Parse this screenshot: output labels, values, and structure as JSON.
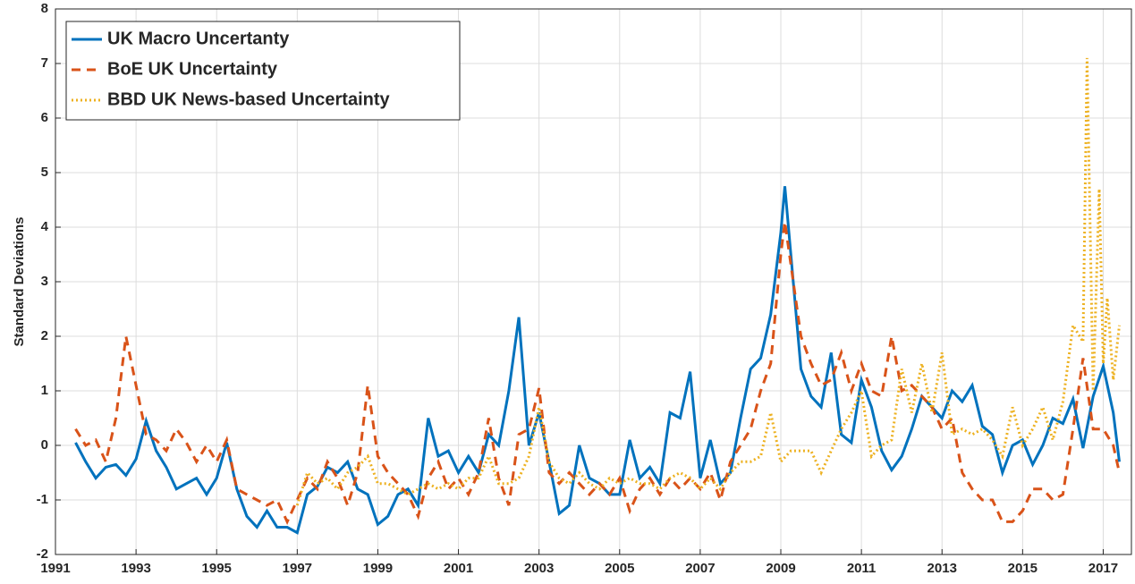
{
  "chart_data": {
    "type": "line",
    "ylabel": "Standard Deviations",
    "xlim": [
      1991,
      2017.7
    ],
    "xticks": [
      1991,
      1993,
      1995,
      1997,
      1999,
      2001,
      2003,
      2005,
      2007,
      2009,
      2011,
      2013,
      2015,
      2017
    ],
    "ylim": [
      -2,
      8
    ],
    "yticks": [
      -2,
      -1,
      0,
      1,
      2,
      3,
      4,
      5,
      6,
      7,
      8
    ],
    "grid": true,
    "legend": "upper-left",
    "series": [
      {
        "name": "UK Macro Uncertanty",
        "color": "#0072bd",
        "linestyle": "solid",
        "x": [
          1991.5,
          1991.75,
          1992,
          1992.25,
          1992.5,
          1992.75,
          1993,
          1993.25,
          1993.5,
          1993.75,
          1994,
          1994.25,
          1994.5,
          1994.75,
          1995,
          1995.25,
          1995.5,
          1995.75,
          1996,
          1996.25,
          1996.5,
          1996.75,
          1997,
          1997.25,
          1997.5,
          1997.75,
          1998,
          1998.25,
          1998.5,
          1998.75,
          1999,
          1999.25,
          1999.5,
          1999.75,
          2000,
          2000.25,
          2000.5,
          2000.75,
          2001,
          2001.25,
          2001.5,
          2001.75,
          2002,
          2002.25,
          2002.5,
          2002.75,
          2003,
          2003.25,
          2003.5,
          2003.75,
          2004,
          2004.25,
          2004.5,
          2004.75,
          2005,
          2005.25,
          2005.5,
          2005.75,
          2006,
          2006.25,
          2006.5,
          2006.75,
          2007,
          2007.25,
          2007.5,
          2007.75,
          2008,
          2008.25,
          2008.5,
          2008.75,
          2009,
          2009.1,
          2009.5,
          2009.75,
          2010,
          2010.25,
          2010.5,
          2010.75,
          2011,
          2011.25,
          2011.5,
          2011.75,
          2012,
          2012.25,
          2012.5,
          2012.75,
          2013,
          2013.25,
          2013.5,
          2013.75,
          2014,
          2014.25,
          2014.5,
          2014.75,
          2015,
          2015.25,
          2015.5,
          2015.75,
          2016,
          2016.25,
          2016.5,
          2016.75,
          2017,
          2017.25,
          2017.4
        ],
        "values": [
          0.05,
          -0.3,
          -0.6,
          -0.4,
          -0.35,
          -0.55,
          -0.25,
          0.45,
          -0.1,
          -0.4,
          -0.8,
          -0.7,
          -0.6,
          -0.9,
          -0.6,
          0.05,
          -0.8,
          -1.3,
          -1.5,
          -1.2,
          -1.5,
          -1.5,
          -1.6,
          -0.9,
          -0.75,
          -0.4,
          -0.5,
          -0.3,
          -0.8,
          -0.9,
          -1.45,
          -1.3,
          -0.9,
          -0.8,
          -1.1,
          0.5,
          -0.2,
          -0.1,
          -0.5,
          -0.2,
          -0.5,
          0.2,
          0,
          1,
          2.35,
          0,
          0.6,
          -0.3,
          -1.25,
          -1.1,
          0,
          -0.6,
          -0.7,
          -0.9,
          -0.9,
          0.1,
          -0.6,
          -0.4,
          -0.7,
          0.6,
          0.5,
          1.35,
          -0.6,
          0.1,
          -0.7,
          -0.5,
          0.5,
          1.4,
          1.6,
          2.4,
          3.9,
          4.75,
          1.4,
          0.9,
          0.7,
          1.7,
          0.2,
          0.05,
          1.2,
          0.7,
          -0.1,
          -0.45,
          -0.2,
          0.3,
          0.9,
          0.7,
          0.5,
          1,
          0.8,
          1.1,
          0.35,
          0.2,
          -0.5,
          0,
          0.1,
          -0.35,
          0,
          0.5,
          0.4,
          0.85,
          -0.05,
          0.9,
          1.45,
          0.6,
          -0.3
        ]
      },
      {
        "name": "BoE UK Uncertainty",
        "color": "#d95319",
        "linestyle": "dashed",
        "x": [
          1991.5,
          1991.75,
          1992,
          1992.25,
          1992.5,
          1992.75,
          1993,
          1993.25,
          1993.5,
          1993.75,
          1994,
          1994.25,
          1994.5,
          1994.75,
          1995,
          1995.25,
          1995.5,
          1995.75,
          1996,
          1996.25,
          1996.5,
          1996.75,
          1997,
          1997.25,
          1997.5,
          1997.75,
          1998,
          1998.25,
          1998.5,
          1998.75,
          1999,
          1999.25,
          1999.5,
          1999.75,
          2000,
          2000.25,
          2000.5,
          2000.75,
          2001,
          2001.25,
          2001.5,
          2001.75,
          2002,
          2002.25,
          2002.5,
          2002.75,
          2003,
          2003.25,
          2003.5,
          2003.75,
          2004,
          2004.25,
          2004.5,
          2004.75,
          2005,
          2005.25,
          2005.5,
          2005.75,
          2006,
          2006.25,
          2006.5,
          2006.75,
          2007,
          2007.25,
          2007.5,
          2007.75,
          2008,
          2008.25,
          2008.5,
          2008.75,
          2009,
          2009.1,
          2009.5,
          2009.75,
          2010,
          2010.25,
          2010.5,
          2010.75,
          2011,
          2011.25,
          2011.5,
          2011.75,
          2012,
          2012.25,
          2012.5,
          2012.75,
          2013,
          2013.25,
          2013.5,
          2013.75,
          2014,
          2014.25,
          2014.5,
          2014.75,
          2015,
          2015.25,
          2015.5,
          2015.75,
          2016,
          2016.25,
          2016.5,
          2016.75,
          2017,
          2017.25,
          2017.4
        ],
        "values": [
          0.3,
          0,
          0.1,
          -0.3,
          0.5,
          2,
          1.1,
          0.2,
          0.1,
          -0.1,
          0.3,
          0.05,
          -0.3,
          0,
          -0.3,
          0.1,
          -0.8,
          -0.9,
          -1,
          -1.1,
          -1,
          -1.4,
          -1,
          -0.6,
          -0.8,
          -0.3,
          -0.6,
          -1.1,
          -0.5,
          1.1,
          -0.2,
          -0.5,
          -0.7,
          -0.9,
          -1.3,
          -0.6,
          -0.3,
          -0.8,
          -0.6,
          -0.9,
          -0.5,
          0.5,
          -0.6,
          -1.1,
          0.2,
          0.3,
          1.05,
          -0.5,
          -0.7,
          -0.5,
          -0.7,
          -0.9,
          -0.7,
          -0.9,
          -0.6,
          -1.2,
          -0.8,
          -0.6,
          -0.9,
          -0.6,
          -0.8,
          -0.6,
          -0.8,
          -0.5,
          -1,
          -0.3,
          0,
          0.3,
          1,
          1.5,
          3.5,
          4.1,
          2,
          1.5,
          1.1,
          1.2,
          1.7,
          1,
          1.5,
          1,
          0.9,
          2,
          1,
          1.1,
          0.9,
          0.7,
          0.3,
          0.5,
          -0.5,
          -0.8,
          -1,
          -1,
          -1.4,
          -1.4,
          -1.2,
          -0.8,
          -0.8,
          -1,
          -0.9,
          0.3,
          1.6,
          0.3,
          0.3,
          0,
          -0.5
        ]
      },
      {
        "name": "BBD UK News-based Uncertainty",
        "color": "#edb120",
        "linestyle": "dotted",
        "x": [
          1997,
          1997.25,
          1997.5,
          1997.75,
          1998,
          1998.25,
          1998.5,
          1998.75,
          1999,
          1999.25,
          1999.5,
          1999.75,
          2000,
          2000.25,
          2000.5,
          2000.75,
          2001,
          2001.25,
          2001.5,
          2001.75,
          2002,
          2002.25,
          2002.5,
          2002.75,
          2003,
          2003.25,
          2003.5,
          2003.75,
          2004,
          2004.25,
          2004.5,
          2004.75,
          2005,
          2005.25,
          2005.5,
          2005.75,
          2006,
          2006.25,
          2006.5,
          2006.75,
          2007,
          2007.25,
          2007.5,
          2007.75,
          2008,
          2008.25,
          2008.5,
          2008.75,
          2009,
          2009.25,
          2009.5,
          2009.75,
          2010,
          2010.25,
          2010.5,
          2010.75,
          2011,
          2011.25,
          2011.5,
          2011.75,
          2012,
          2012.25,
          2012.5,
          2012.75,
          2013,
          2013.25,
          2013.5,
          2013.75,
          2014,
          2014.25,
          2014.5,
          2014.75,
          2015,
          2015.25,
          2015.5,
          2015.75,
          2016,
          2016.25,
          2016.5,
          2016.6,
          2016.75,
          2016.9,
          2017,
          2017.1,
          2017.25,
          2017.4
        ],
        "values": [
          -1.1,
          -0.5,
          -0.7,
          -0.6,
          -0.8,
          -0.5,
          -0.4,
          -0.2,
          -0.7,
          -0.7,
          -0.8,
          -0.9,
          -0.8,
          -0.7,
          -0.8,
          -0.7,
          -0.8,
          -0.6,
          -0.6,
          -0.2,
          -0.7,
          -0.7,
          -0.6,
          -0.2,
          0.7,
          -0.3,
          -0.6,
          -0.7,
          -0.5,
          -0.7,
          -0.8,
          -0.6,
          -0.7,
          -0.6,
          -0.7,
          -0.7,
          -0.8,
          -0.6,
          -0.5,
          -0.6,
          -0.8,
          -0.6,
          -0.8,
          -0.5,
          -0.3,
          -0.3,
          -0.2,
          0.6,
          -0.3,
          -0.1,
          -0.1,
          -0.1,
          -0.5,
          -0.1,
          0.3,
          0.6,
          1,
          -0.2,
          0,
          0.1,
          1.4,
          0.6,
          1.5,
          0.6,
          1.7,
          0.2,
          0.3,
          0.2,
          0.3,
          0.1,
          -0.2,
          0.7,
          0,
          0.3,
          0.7,
          0.1,
          0.8,
          2.2,
          1.9,
          7.1,
          1,
          4.7,
          1.5,
          2.7,
          1.2,
          2.2
        ]
      }
    ]
  }
}
